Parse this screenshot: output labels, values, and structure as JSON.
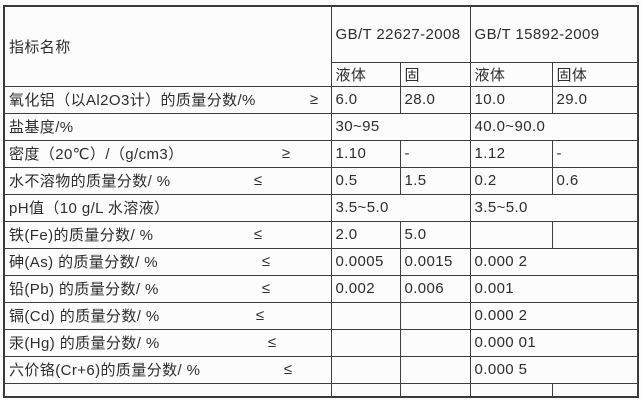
{
  "colors": {
    "border": "#3e3e3e",
    "text": "#2d2d2d",
    "background": "#fbfbfb"
  },
  "table": {
    "header": {
      "indicator_col": "指标名称",
      "standards": [
        "GB/T 22627-2008",
        "GB/T 15892-2009"
      ],
      "sub_columns": [
        "液体",
        "固",
        "液体",
        "固体"
      ]
    },
    "rows": [
      {
        "label": "氧化铝（以Al2O3计）的质量分数/%",
        "symbol": "≥",
        "cells": [
          {
            "text": "6.0",
            "span": 1
          },
          {
            "text": "28.0",
            "span": 1
          },
          {
            "text": "10.0",
            "span": 1
          },
          {
            "text": "29.0",
            "span": 1
          }
        ]
      },
      {
        "label": "盐基度/%",
        "symbol": "",
        "cells": [
          {
            "text": "30~95",
            "span": 2
          },
          {
            "text": "40.0~90.0",
            "span": 2
          }
        ]
      },
      {
        "label": "密度（20℃）/（g/cm3）",
        "symbol": "≥",
        "cells": [
          {
            "text": "1.10",
            "span": 1
          },
          {
            "text": "-",
            "span": 1
          },
          {
            "text": "1.12",
            "span": 1
          },
          {
            "text": "-",
            "span": 1
          }
        ]
      },
      {
        "label": "水不溶物的质量分数/ %",
        "symbol": "≤",
        "cells": [
          {
            "text": "0.5",
            "span": 1
          },
          {
            "text": "1.5",
            "span": 1
          },
          {
            "text": "0.2",
            "span": 1
          },
          {
            "text": "0.6",
            "span": 1
          }
        ]
      },
      {
        "label": "pH值（10 g/L 水溶液）",
        "symbol": "",
        "cells": [
          {
            "text": "3.5~5.0",
            "span": 2
          },
          {
            "text": "3.5~5.0",
            "span": 2
          }
        ]
      },
      {
        "label": "铁(Fe)的质量分数/ %",
        "symbol": "≤",
        "cells": [
          {
            "text": "2.0",
            "span": 1
          },
          {
            "text": "5.0",
            "span": 1
          },
          {
            "text": "",
            "span": 1
          },
          {
            "text": "",
            "span": 1
          }
        ]
      },
      {
        "label": "砷(As) 的质量分数/ %",
        "symbol": "≤",
        "cells": [
          {
            "text": "0.0005",
            "span": 1
          },
          {
            "text": "0.0015",
            "span": 1
          },
          {
            "text": "0.000 2",
            "span": 2
          }
        ]
      },
      {
        "label": "铅(Pb) 的质量分数/ %",
        "symbol": "≤",
        "cells": [
          {
            "text": "0.002",
            "span": 1
          },
          {
            "text": "0.006",
            "span": 1
          },
          {
            "text": "0.001",
            "span": 2
          }
        ]
      },
      {
        "label": "镉(Cd) 的质量分数/ %",
        "symbol": "≤",
        "cells": [
          {
            "text": "",
            "span": 1
          },
          {
            "text": "",
            "span": 1
          },
          {
            "text": "0.000 2",
            "span": 2
          }
        ]
      },
      {
        "label": "汞(Hg) 的质量分数/ %",
        "symbol": "≤",
        "cells": [
          {
            "text": "",
            "span": 1
          },
          {
            "text": "",
            "span": 1
          },
          {
            "text": "0.000 01",
            "span": 2
          }
        ]
      },
      {
        "label": "六价铬(Cr+6)的质量分数/ %",
        "symbol": "≤",
        "cells": [
          {
            "text": "",
            "span": 1
          },
          {
            "text": "",
            "span": 1
          },
          {
            "text": "0.000 5",
            "span": 2
          }
        ]
      }
    ]
  }
}
